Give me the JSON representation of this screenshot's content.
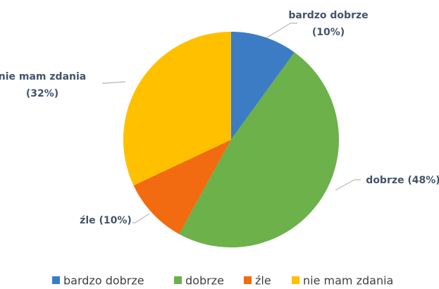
{
  "chart_data": {
    "type": "pie",
    "categories": [
      "bardzo dobrze",
      "dobrze",
      "źle",
      "nie mam zdania"
    ],
    "values": [
      10,
      48,
      10,
      32
    ],
    "value_labels": [
      "(10%)",
      "(48%)",
      "(10%)",
      "(32%)"
    ],
    "colors": [
      "#3b7cc4",
      "#6cb14a",
      "#f26b10",
      "#ffc000"
    ],
    "legend": "bottom"
  }
}
